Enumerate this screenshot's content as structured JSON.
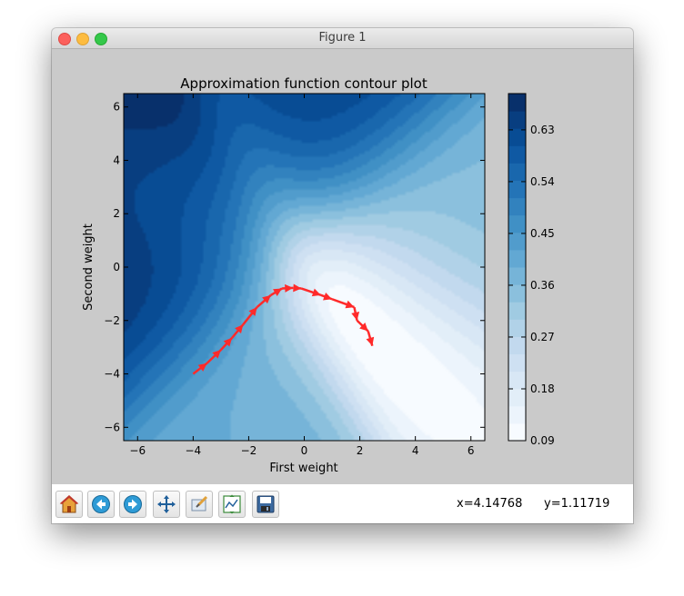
{
  "window": {
    "title": "Figure 1"
  },
  "toolbar": {
    "buttons": [
      {
        "icon": "home-icon"
      },
      {
        "icon": "back-arrow-icon"
      },
      {
        "icon": "forward-arrow-icon"
      },
      {
        "icon": "pan-move-icon"
      },
      {
        "icon": "zoom-rect-icon"
      },
      {
        "icon": "configure-subplots-icon"
      },
      {
        "icon": "save-disk-icon"
      }
    ],
    "x_readout": "x=4.14768",
    "y_readout": "y=1.11719"
  },
  "chart_data": {
    "type": "contour",
    "title": "Approximation function contour plot",
    "xlabel": "First weight",
    "ylabel": "Second weight",
    "xlim": [
      -6.5,
      6.5
    ],
    "ylim": [
      -6.5,
      6.5
    ],
    "x_ticks": [
      "−6",
      "−4",
      "−2",
      "0",
      "2",
      "4",
      "6"
    ],
    "y_ticks": [
      "−6",
      "−4",
      "−2",
      "0",
      "2",
      "4",
      "6"
    ],
    "x_tick_values": [
      -6,
      -4,
      -2,
      0,
      2,
      4,
      6
    ],
    "y_tick_values": [
      -6,
      -4,
      -2,
      0,
      2,
      4,
      6
    ],
    "colorbar": {
      "min": 0.09,
      "max": 0.693,
      "levels": 20,
      "tick_values": [
        0.09,
        0.18,
        0.27,
        0.36,
        0.45,
        0.54,
        0.63
      ],
      "tick_labels": [
        "0.09",
        "0.18",
        "0.27",
        "0.36",
        "0.45",
        "0.54",
        "0.63"
      ],
      "colormap": "Blues"
    },
    "trajectory": {
      "color": "#ff2a2a",
      "x": [
        -4.0,
        -3.5,
        -3.0,
        -2.6,
        -2.2,
        -1.7,
        -1.2,
        -0.8,
        -0.4,
        -0.1,
        0.6,
        1.0,
        1.8,
        1.9,
        2.3,
        2.45
      ],
      "y": [
        -4.0,
        -3.6,
        -3.1,
        -2.65,
        -2.15,
        -1.5,
        -1.05,
        -0.8,
        -0.78,
        -0.8,
        -1.05,
        -1.2,
        -1.5,
        -2.0,
        -2.4,
        -2.95
      ]
    }
  }
}
